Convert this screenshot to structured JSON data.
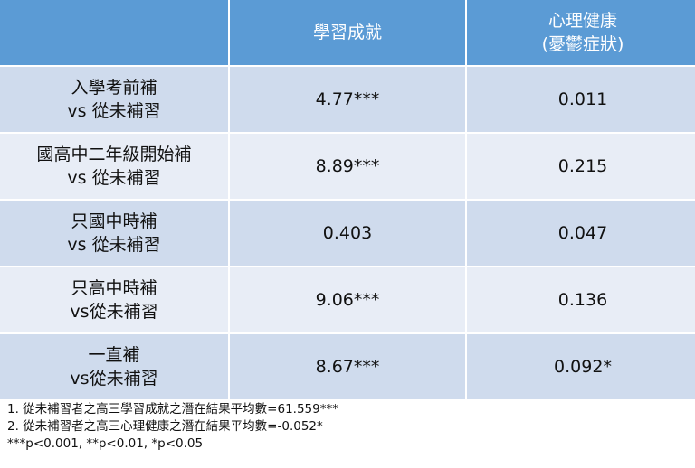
{
  "header": {
    "col0": "",
    "col1": "學習成就",
    "col2_line1": "心理健康",
    "col2_line2": "(憂鬱症狀)"
  },
  "rows": [
    {
      "label1": "入學考前補",
      "label2": "vs 從未補習",
      "academic": "4.77***",
      "mental": "0.011"
    },
    {
      "label1": "國高中二年級開始補",
      "label2": "vs 從未補習",
      "academic": "8.89***",
      "mental": "0.215"
    },
    {
      "label1": "只國中時補",
      "label2": "vs 從未補習",
      "academic": "0.403",
      "mental": "0.047"
    },
    {
      "label1": "只高中時補",
      "label2": "vs從未補習",
      "academic": "9.06***",
      "mental": "0.136"
    },
    {
      "label1": "一直補",
      "label2": "vs從未補習",
      "academic": "8.67***",
      "mental": "0.092*"
    }
  ],
  "notes": [
    "1. 從未補習者之高三學習成就之潛在結果平均數=61.559***",
    "2. 從未補習者之高三心理健康之潛在結果平均數=-0.052*",
    "***p<0.001, **p<0.01, *p<0.05"
  ],
  "colors": {
    "header": "#5b9bd5",
    "row_odd": "#cfdbed",
    "row_even": "#e8edf6"
  }
}
